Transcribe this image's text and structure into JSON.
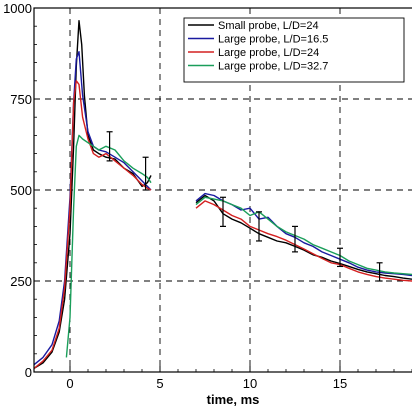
{
  "chart_data": {
    "type": "line",
    "title": "",
    "xlabel": "time, ms",
    "ylabel": "",
    "xlim": [
      -2,
      19
    ],
    "ylim": [
      0,
      1000
    ],
    "x_ticks": [
      0,
      5,
      10,
      15
    ],
    "y_ticks": [
      0,
      250,
      500,
      750,
      1000
    ],
    "x_tick_labels": [
      "0",
      "5",
      "10",
      "15"
    ],
    "y_tick_labels": [
      "0",
      "250",
      "500",
      "750",
      "1000"
    ],
    "grid": true,
    "legend_position": "top-right",
    "series": [
      {
        "name": "Small probe, L/D=24",
        "color": "#000000",
        "segments": [
          [
            [
              -2,
              10
            ],
            [
              -1.5,
              25
            ],
            [
              -1,
              55
            ],
            [
              -0.6,
              110
            ],
            [
              -0.3,
              200
            ],
            [
              0,
              380
            ],
            [
              0.2,
              620
            ],
            [
              0.35,
              840
            ],
            [
              0.5,
              965
            ],
            [
              0.65,
              900
            ],
            [
              0.8,
              760
            ],
            [
              1.0,
              650
            ],
            [
              1.3,
              610
            ],
            [
              1.6,
              600
            ],
            [
              2.0,
              590
            ],
            [
              2.5,
              585
            ],
            [
              3.0,
              560
            ],
            [
              3.5,
              545
            ],
            [
              4.0,
              510
            ],
            [
              4.3,
              520
            ],
            [
              4.5,
              540
            ]
          ],
          [
            [
              7,
              465
            ],
            [
              7.5,
              485
            ],
            [
              8.0,
              470
            ],
            [
              8.5,
              435
            ],
            [
              9.0,
              420
            ],
            [
              9.5,
              410
            ],
            [
              10.0,
              395
            ],
            [
              10.5,
              380
            ],
            [
              11.0,
              370
            ],
            [
              11.5,
              360
            ],
            [
              12.0,
              355
            ],
            [
              12.5,
              345
            ],
            [
              13.0,
              335
            ],
            [
              13.5,
              322
            ],
            [
              14.0,
              315
            ],
            [
              14.5,
              305
            ],
            [
              15.0,
              298
            ],
            [
              15.5,
              290
            ],
            [
              16.0,
              282
            ],
            [
              16.5,
              275
            ],
            [
              17.0,
              270
            ],
            [
              17.5,
              265
            ],
            [
              18.0,
              262
            ],
            [
              18.5,
              258
            ],
            [
              19.0,
              255
            ]
          ]
        ]
      },
      {
        "name": "Large probe, L/D=16.5",
        "color": "#1a1aa0",
        "segments": [
          [
            [
              -2,
              20
            ],
            [
              -1.5,
              40
            ],
            [
              -1,
              75
            ],
            [
              -0.6,
              140
            ],
            [
              -0.3,
              250
            ],
            [
              0,
              480
            ],
            [
              0.2,
              740
            ],
            [
              0.35,
              860
            ],
            [
              0.5,
              880
            ],
            [
              0.7,
              760
            ],
            [
              1.0,
              660
            ],
            [
              1.3,
              620
            ],
            [
              1.6,
              610
            ],
            [
              2.0,
              605
            ],
            [
              2.5,
              590
            ],
            [
              3.0,
              575
            ],
            [
              3.5,
              550
            ],
            [
              4.0,
              525
            ],
            [
              4.3,
              510
            ],
            [
              4.5,
              500
            ]
          ],
          [
            [
              7,
              470
            ],
            [
              7.5,
              490
            ],
            [
              8.0,
              485
            ],
            [
              8.5,
              470
            ],
            [
              9.0,
              460
            ],
            [
              9.5,
              445
            ],
            [
              10.0,
              450
            ],
            [
              10.5,
              420
            ],
            [
              11.0,
              425
            ],
            [
              11.5,
              400
            ],
            [
              12.0,
              380
            ],
            [
              12.5,
              370
            ],
            [
              13.0,
              355
            ],
            [
              13.5,
              345
            ],
            [
              14.0,
              330
            ],
            [
              14.5,
              320
            ],
            [
              15.0,
              310
            ],
            [
              15.5,
              300
            ],
            [
              16.0,
              288
            ],
            [
              16.5,
              280
            ],
            [
              17.0,
              275
            ],
            [
              17.5,
              272
            ],
            [
              18.0,
              270
            ],
            [
              18.5,
              268
            ],
            [
              19.0,
              265
            ]
          ]
        ]
      },
      {
        "name": "Large probe, L/D=24",
        "color": "#d42020",
        "segments": [
          [
            [
              -2,
              10
            ],
            [
              -1.5,
              30
            ],
            [
              -1,
              60
            ],
            [
              -0.6,
              120
            ],
            [
              -0.3,
              230
            ],
            [
              0,
              450
            ],
            [
              0.2,
              740
            ],
            [
              0.35,
              800
            ],
            [
              0.5,
              790
            ],
            [
              0.7,
              700
            ],
            [
              1.0,
              640
            ],
            [
              1.3,
              600
            ],
            [
              1.6,
              590
            ],
            [
              2.0,
              600
            ],
            [
              2.5,
              580
            ],
            [
              3.0,
              560
            ],
            [
              3.5,
              540
            ],
            [
              4.0,
              515
            ],
            [
              4.3,
              505
            ],
            [
              4.5,
              500
            ]
          ],
          [
            [
              7,
              450
            ],
            [
              7.5,
              470
            ],
            [
              8.0,
              460
            ],
            [
              8.5,
              445
            ],
            [
              9.0,
              430
            ],
            [
              9.5,
              420
            ],
            [
              10.0,
              400
            ],
            [
              10.5,
              390
            ],
            [
              11.0,
              380
            ],
            [
              11.5,
              372
            ],
            [
              12.0,
              362
            ],
            [
              12.5,
              350
            ],
            [
              13.0,
              338
            ],
            [
              13.5,
              325
            ],
            [
              14.0,
              312
            ],
            [
              14.5,
              300
            ],
            [
              15.0,
              295
            ],
            [
              15.5,
              285
            ],
            [
              16.0,
              275
            ],
            [
              16.5,
              268
            ],
            [
              17.0,
              262
            ],
            [
              17.5,
              258
            ],
            [
              18.0,
              255
            ],
            [
              18.5,
              252
            ],
            [
              19.0,
              250
            ]
          ]
        ]
      },
      {
        "name": "Large probe, L/D=32.7",
        "color": "#1a9e5a",
        "segments": [
          [
            [
              -0.2,
              40
            ],
            [
              0,
              150
            ],
            [
              0.2,
              450
            ],
            [
              0.35,
              620
            ],
            [
              0.5,
              650
            ],
            [
              0.7,
              640
            ],
            [
              1.0,
              630
            ],
            [
              1.3,
              620
            ],
            [
              1.6,
              610
            ],
            [
              2.0,
              620
            ],
            [
              2.5,
              610
            ],
            [
              3.0,
              580
            ],
            [
              3.5,
              560
            ],
            [
              4.0,
              545
            ],
            [
              4.3,
              535
            ],
            [
              4.5,
              520
            ]
          ],
          [
            [
              7,
              460
            ],
            [
              7.5,
              480
            ],
            [
              8.0,
              475
            ],
            [
              8.5,
              470
            ],
            [
              9.0,
              460
            ],
            [
              9.5,
              450
            ],
            [
              10.0,
              430
            ],
            [
              10.5,
              440
            ],
            [
              11.0,
              420
            ],
            [
              11.5,
              400
            ],
            [
              12.0,
              385
            ],
            [
              12.5,
              375
            ],
            [
              13.0,
              365
            ],
            [
              13.5,
              350
            ],
            [
              14.0,
              340
            ],
            [
              14.5,
              330
            ],
            [
              15.0,
              320
            ],
            [
              15.5,
              305
            ],
            [
              16.0,
              295
            ],
            [
              16.5,
              285
            ],
            [
              17.0,
              280
            ],
            [
              17.5,
              275
            ],
            [
              18.0,
              272
            ],
            [
              18.5,
              270
            ],
            [
              19.0,
              268
            ]
          ]
        ]
      }
    ],
    "error_bars": [
      {
        "x": 2.2,
        "low": 580,
        "high": 660
      },
      {
        "x": 4.2,
        "low": 500,
        "high": 590
      },
      {
        "x": 8.5,
        "low": 400,
        "high": 480
      },
      {
        "x": 10.5,
        "low": 360,
        "high": 440
      },
      {
        "x": 12.5,
        "low": 330,
        "high": 400
      },
      {
        "x": 15.0,
        "low": 290,
        "high": 340
      },
      {
        "x": 17.2,
        "low": 250,
        "high": 300
      }
    ]
  }
}
